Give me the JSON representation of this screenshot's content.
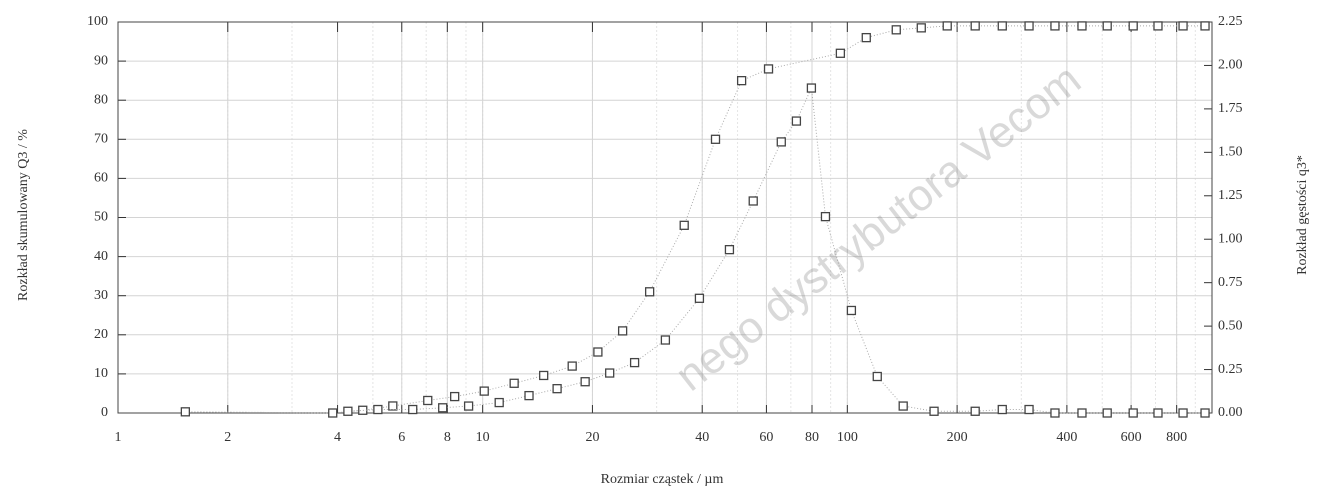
{
  "chart_data": {
    "type": "scatter",
    "xlabel": "Rozmiar cząstek / µm",
    "ylabel": "Rozkład skumulowany Q3 / %",
    "y2label": "Rozkład gęstości q3*",
    "watermark": "nego dystrybutora Vecom",
    "xscale": "log",
    "grid": true,
    "xlim": [
      1,
      1000
    ],
    "xticks": [
      1,
      2,
      4,
      6,
      8,
      10,
      20,
      40,
      60,
      80,
      100,
      200,
      400,
      600,
      800
    ],
    "ylim": [
      0,
      100
    ],
    "yticks": [
      0,
      10,
      20,
      30,
      40,
      50,
      60,
      70,
      80,
      90,
      100
    ],
    "y2lim": [
      0,
      2.25
    ],
    "y2ticks": [
      {
        "value": 0,
        "label": "0.00"
      },
      {
        "value": 0.25,
        "label": "0.25"
      },
      {
        "value": 0.5,
        "label": "0.50"
      },
      {
        "value": 0.75,
        "label": "0.75"
      },
      {
        "value": 1,
        "label": "1.00"
      },
      {
        "value": 1.25,
        "label": "1.25"
      },
      {
        "value": 1.5,
        "label": "1.50"
      },
      {
        "value": 1.75,
        "label": "1.75"
      },
      {
        "value": 2,
        "label": "2.00"
      },
      {
        "value": 2.25,
        "label": "2.25"
      }
    ],
    "series": [
      {
        "color": "#444444",
        "x": [
          1.53,
          3.88,
          4.69,
          5.67,
          7.07,
          8.38,
          10.1,
          12.2,
          14.7,
          17.6,
          20.7,
          24.2,
          28.7,
          35.7,
          43.5,
          51.3,
          60.8,
          95.7,
          112.7,
          136.2,
          159.5,
          187.9,
          224.2,
          266,
          315,
          371,
          440,
          516,
          608,
          711,
          833,
          957
        ],
        "values": [
          0.3,
          0,
          0.7,
          1.8,
          3.2,
          4.2,
          5.6,
          7.6,
          9.6,
          12,
          15.6,
          21,
          31,
          48,
          70,
          85,
          88,
          92,
          96,
          98,
          98.5,
          99,
          99,
          99,
          99,
          99,
          99,
          99,
          99,
          99,
          99,
          99
        ]
      },
      {
        "color": "#444444",
        "axis": "y2",
        "x": [
          4.27,
          5.16,
          6.43,
          7.77,
          9.15,
          11.1,
          13.4,
          16.0,
          19.1,
          22.3,
          26.1,
          31.7,
          39.3,
          47.5,
          55.2,
          65.9,
          72.5,
          79.7,
          87.1,
          102.6,
          120.8,
          142.3,
          172.9,
          224.2,
          266,
          315,
          371,
          440,
          516,
          608,
          711,
          833,
          957
        ],
        "values": [
          0.01,
          0.02,
          0.02,
          0.03,
          0.04,
          0.06,
          0.1,
          0.14,
          0.18,
          0.23,
          0.29,
          0.42,
          0.66,
          0.94,
          1.22,
          1.56,
          1.68,
          1.87,
          1.13,
          0.59,
          0.21,
          0.04,
          0.01,
          0.01,
          0.02,
          0.02,
          0,
          0,
          0,
          0,
          0,
          0,
          0
        ]
      }
    ]
  }
}
